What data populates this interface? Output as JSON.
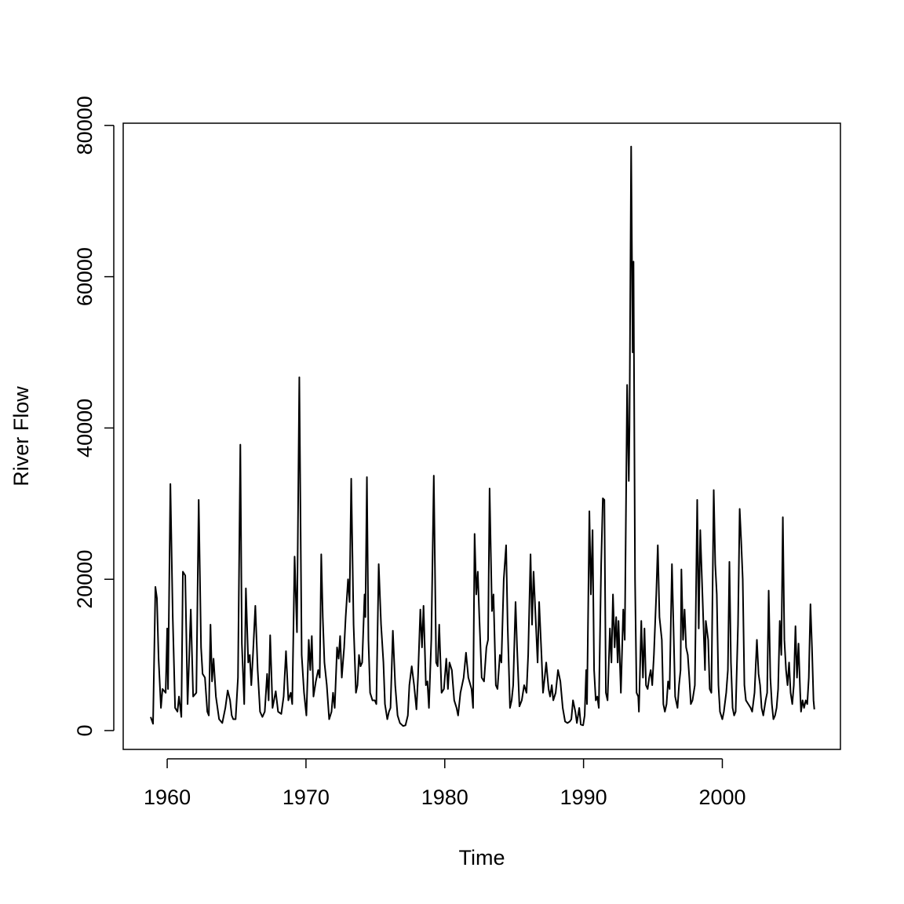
{
  "chart_data": {
    "type": "line",
    "xlabel": "Time",
    "ylabel": "River Flow",
    "color": "#000000",
    "xlim": [
      1956.83,
      2008.51
    ],
    "ylim": [
      -2490,
      80290
    ],
    "xticks": [
      1960,
      1970,
      1980,
      1990,
      2000
    ],
    "yticks": [
      0,
      20000,
      40000,
      60000,
      80000
    ],
    "x": [
      1958.81,
      1958.98,
      1959.15,
      1959.26,
      1959.38,
      1959.55,
      1959.66,
      1959.89,
      1960.0,
      1960.06,
      1960.23,
      1960.4,
      1960.57,
      1960.74,
      1960.85,
      1961.02,
      1961.13,
      1961.3,
      1961.47,
      1961.7,
      1961.87,
      1962.1,
      1962.27,
      1962.44,
      1962.55,
      1962.72,
      1962.89,
      1963.0,
      1963.12,
      1963.23,
      1963.34,
      1963.51,
      1963.74,
      1963.97,
      1964.19,
      1964.36,
      1964.53,
      1964.65,
      1964.76,
      1964.93,
      1965.1,
      1965.27,
      1965.38,
      1965.55,
      1965.67,
      1965.84,
      1965.95,
      1966.06,
      1966.18,
      1966.35,
      1966.52,
      1966.69,
      1966.86,
      1967.03,
      1967.2,
      1967.31,
      1967.42,
      1967.59,
      1967.82,
      1967.99,
      1968.22,
      1968.39,
      1968.56,
      1968.73,
      1968.9,
      1969.01,
      1969.18,
      1969.35,
      1969.52,
      1969.69,
      1969.86,
      1970.03,
      1970.2,
      1970.31,
      1970.42,
      1970.54,
      1970.71,
      1970.88,
      1970.99,
      1971.1,
      1971.21,
      1971.33,
      1971.5,
      1971.67,
      1971.84,
      1971.95,
      1972.07,
      1972.24,
      1972.35,
      1972.46,
      1972.58,
      1972.75,
      1972.86,
      1973.03,
      1973.14,
      1973.26,
      1973.43,
      1973.6,
      1973.71,
      1973.82,
      1973.93,
      1974.05,
      1974.22,
      1974.28,
      1974.39,
      1974.5,
      1974.62,
      1974.79,
      1974.96,
      1975.07,
      1975.24,
      1975.41,
      1975.58,
      1975.69,
      1975.86,
      1975.98,
      1976.09,
      1976.26,
      1976.43,
      1976.6,
      1976.77,
      1977.0,
      1977.17,
      1977.34,
      1977.45,
      1977.62,
      1977.79,
      1977.96,
      1978.07,
      1978.24,
      1978.36,
      1978.47,
      1978.64,
      1978.75,
      1978.86,
      1979.03,
      1979.21,
      1979.38,
      1979.49,
      1979.6,
      1979.77,
      1979.94,
      1980.11,
      1980.23,
      1980.34,
      1980.51,
      1980.68,
      1980.85,
      1980.96,
      1981.13,
      1981.36,
      1981.53,
      1981.7,
      1981.93,
      1982.04,
      1982.15,
      1982.27,
      1982.38,
      1982.49,
      1982.66,
      1982.83,
      1983.0,
      1983.12,
      1983.23,
      1983.4,
      1983.51,
      1983.68,
      1983.8,
      1983.97,
      1984.08,
      1984.25,
      1984.42,
      1984.53,
      1984.7,
      1984.82,
      1984.93,
      1985.1,
      1985.21,
      1985.38,
      1985.55,
      1985.72,
      1985.89,
      1986.01,
      1986.18,
      1986.29,
      1986.4,
      1986.52,
      1986.69,
      1986.8,
      1986.97,
      1987.08,
      1987.2,
      1987.31,
      1987.48,
      1987.59,
      1987.71,
      1987.82,
      1987.99,
      1988.16,
      1988.33,
      1988.5,
      1988.67,
      1988.84,
      1989.01,
      1989.12,
      1989.24,
      1989.41,
      1989.52,
      1989.69,
      1989.8,
      1989.97,
      1990.08,
      1990.19,
      1990.25,
      1990.42,
      1990.53,
      1990.65,
      1990.76,
      1990.88,
      1990.99,
      1991.1,
      1991.27,
      1991.39,
      1991.5,
      1991.61,
      1991.73,
      1991.9,
      1992.01,
      1992.12,
      1992.24,
      1992.35,
      1992.46,
      1992.52,
      1992.69,
      1992.86,
      1992.97,
      1993.14,
      1993.26,
      1993.31,
      1993.43,
      1993.54,
      1993.6,
      1993.71,
      1993.82,
      1993.94,
      1993.99,
      1994.16,
      1994.28,
      1994.39,
      1994.5,
      1994.62,
      1994.73,
      1994.84,
      1994.95,
      1995.07,
      1995.24,
      1995.35,
      1995.47,
      1995.64,
      1995.75,
      1995.86,
      1995.98,
      1996.09,
      1996.2,
      1996.37,
      1996.49,
      1996.6,
      1996.77,
      1996.88,
      1996.99,
      1997.05,
      1997.17,
      1997.28,
      1997.39,
      1997.51,
      1997.62,
      1997.73,
      1997.85,
      1998.02,
      1998.19,
      1998.3,
      1998.41,
      1998.53,
      1998.64,
      1998.75,
      1998.81,
      1998.98,
      1999.09,
      1999.21,
      1999.38,
      1999.49,
      1999.6,
      1999.72,
      1999.83,
      2000.0,
      2000.11,
      2000.28,
      2000.4,
      2000.51,
      2000.62,
      2000.74,
      2000.85,
      2000.96,
      2001.13,
      2001.25,
      2001.36,
      2001.47,
      2001.59,
      2001.7,
      2001.87,
      2002.04,
      2002.15,
      2002.32,
      2002.49,
      2002.61,
      2002.72,
      2002.83,
      2002.95,
      2003.12,
      2003.23,
      2003.34,
      2003.46,
      2003.57,
      2003.68,
      2003.8,
      2003.91,
      2004.02,
      2004.14,
      2004.25,
      2004.36,
      2004.47,
      2004.59,
      2004.7,
      2004.81,
      2004.92,
      2005.04,
      2005.15,
      2005.27,
      2005.38,
      2005.49,
      2005.61,
      2005.67,
      2005.78,
      2005.89,
      2006.01,
      2006.12,
      2006.23,
      2006.35,
      2006.46,
      2006.57,
      2006.63
    ],
    "values": [
      1800,
      900,
      19000,
      17500,
      9500,
      3000,
      5500,
      5000,
      13500,
      5500,
      32600,
      15000,
      3000,
      2500,
      4500,
      1800,
      21000,
      20500,
      3500,
      16000,
      4500,
      5000,
      30500,
      11000,
      7500,
      7000,
      2500,
      2000,
      14000,
      6500,
      9500,
      4500,
      1500,
      1000,
      3000,
      5300,
      4000,
      2000,
      1500,
      1500,
      7000,
      37800,
      11500,
      3500,
      18800,
      9000,
      10000,
      6000,
      10000,
      16500,
      8000,
      2500,
      1800,
      2500,
      7500,
      4000,
      12600,
      3000,
      5200,
      2500,
      2200,
      4500,
      10500,
      4000,
      5000,
      3500,
      23000,
      13000,
      46700,
      10000,
      5000,
      2000,
      12000,
      8000,
      12500,
      4500,
      6500,
      8000,
      7000,
      23300,
      15000,
      9000,
      6000,
      1500,
      2500,
      5000,
      3000,
      11000,
      9500,
      12500,
      7000,
      11000,
      15000,
      20000,
      17000,
      33300,
      14000,
      5000,
      6000,
      10000,
      8500,
      9000,
      18000,
      15000,
      33500,
      12000,
      5000,
      4000,
      4000,
      3500,
      22000,
      14000,
      9000,
      3500,
      1500,
      2500,
      3000,
      13200,
      6000,
      2000,
      1000,
      600,
      700,
      2000,
      6000,
      8500,
      6000,
      2800,
      7000,
      16000,
      11000,
      16500,
      6000,
      6500,
      3000,
      12000,
      33700,
      9000,
      8500,
      14000,
      5000,
      5500,
      9500,
      5500,
      9000,
      8000,
      4000,
      3000,
      2000,
      5000,
      7000,
      10300,
      7000,
      5500,
      3000,
      26000,
      18000,
      21000,
      15000,
      7000,
      6500,
      11000,
      12000,
      32000,
      15800,
      18000,
      6000,
      5500,
      10000,
      9000,
      20000,
      24500,
      14000,
      3000,
      4000,
      6000,
      17000,
      11000,
      3200,
      4000,
      6000,
      5000,
      10000,
      23300,
      14000,
      21000,
      16000,
      9000,
      17000,
      10000,
      5000,
      7000,
      9000,
      5500,
      4500,
      6000,
      4000,
      5000,
      8000,
      6500,
      3000,
      1200,
      1000,
      1200,
      1500,
      4000,
      2500,
      1000,
      3000,
      800,
      700,
      2000,
      8000,
      3500,
      29000,
      18000,
      26500,
      8000,
      4000,
      4500,
      3000,
      22000,
      30700,
      30500,
      5000,
      4000,
      13500,
      9000,
      18000,
      11000,
      15000,
      9000,
      14500,
      5000,
      16000,
      12000,
      45700,
      33000,
      40000,
      77200,
      50000,
      62000,
      20000,
      5000,
      4500,
      2500,
      14500,
      7000,
      13500,
      6000,
      5500,
      7000,
      8000,
      6000,
      10000,
      18000,
      24500,
      15000,
      12000,
      3500,
      2500,
      3500,
      6500,
      5500,
      22000,
      13000,
      4500,
      3000,
      6000,
      8000,
      21300,
      12000,
      16000,
      11000,
      10000,
      7000,
      3500,
      4000,
      6000,
      30500,
      13500,
      26500,
      20000,
      14000,
      8000,
      14500,
      12000,
      5500,
      5000,
      31800,
      22000,
      18000,
      6000,
      2500,
      1500,
      2500,
      5000,
      8000,
      22300,
      9000,
      3000,
      2000,
      2500,
      14000,
      29300,
      25000,
      20000,
      6000,
      4000,
      3500,
      3000,
      2500,
      5000,
      12000,
      7500,
      6000,
      3000,
      2000,
      4000,
      5000,
      18500,
      7000,
      3500,
      1500,
      2000,
      3000,
      5500,
      14500,
      10000,
      28200,
      12000,
      8000,
      6000,
      9000,
      5000,
      3500,
      6000,
      13800,
      7000,
      11500,
      5000,
      2500,
      4000,
      3000,
      4000,
      3500,
      7000,
      16700,
      11000,
      4000,
      2800
    ]
  }
}
